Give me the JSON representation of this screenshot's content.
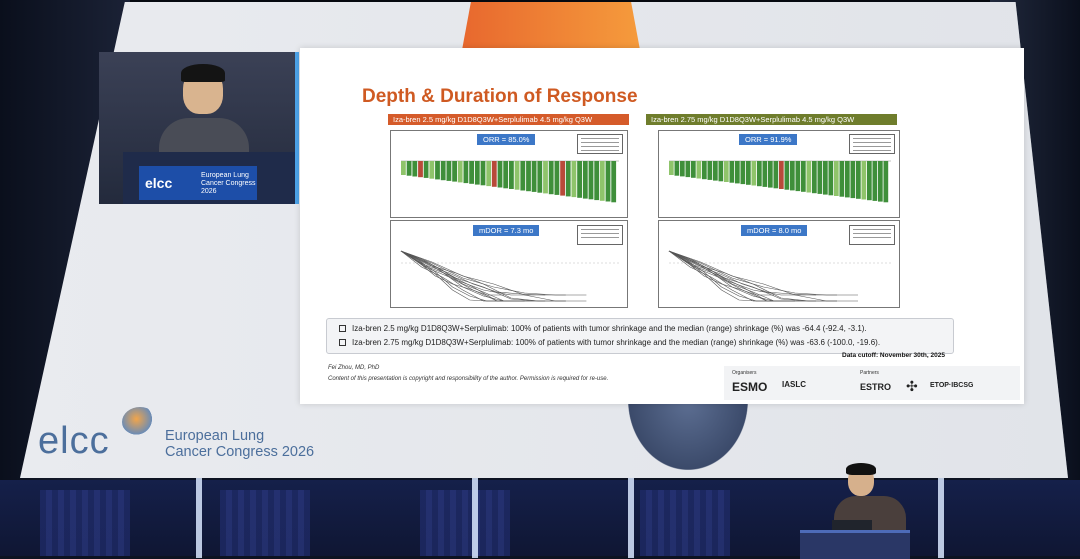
{
  "slide": {
    "title": "Depth & Duration of Response",
    "left_panel": {
      "header": "Iza-bren 2.5 mg/kg D1D8Q3W+Serplulimab 4.5 mg/kg Q3W",
      "orr": "ORR = 85.0%",
      "mdor": "mDOR = 7.3 mo"
    },
    "right_panel": {
      "header": "Iza-bren 2.75 mg/kg D1D8Q3W+Serplulimab 4.5 mg/kg Q3W",
      "orr": "ORR = 91.9%",
      "mdor": "mDOR = 8.0 mo"
    },
    "summary": [
      "Iza-bren 2.5 mg/kg D1D8Q3W+Serplulimab: 100% of patients with tumor shrinkage and the median (range) shrinkage (%) was -64.4 (-92.4, -3.1).",
      "Iza-bren 2.75 mg/kg D1D8Q3W+Serplulimab: 100% of patients with tumor shrinkage and the median (range) shrinkage (%) was -63.6 (-100.0, -19.6)."
    ],
    "data_cutoff": "Data cutoff: November 30th, 2025",
    "author": "Fei Zhou, MD, PhD",
    "copyright": "Content of this presentation is copyright and responsibility of the author. Permission is required for re-use.",
    "logos": {
      "organisers_label": "Organisers",
      "partners_label": "Partners",
      "esmo": "ESMO",
      "iaslc": "IASLC",
      "estro": "ESTRO",
      "etop": "ETOP·IBCSG"
    },
    "colors": {
      "title": "#cf5a22",
      "left_header": "#d55b2a",
      "right_header": "#6f7d2c",
      "badge": "#3c77c7",
      "bar_pr": "#3f8f3a",
      "bar_sd": "#8fc46b",
      "bar_pd": "#b84a3a"
    }
  },
  "conference": {
    "logo_text": "elcc",
    "name_line1": "European Lung",
    "name_line2": "Cancer Congress 2026"
  },
  "podium_sign": {
    "logo_text": "elcc",
    "name": "European Lung Cancer Congress 2026"
  }
}
